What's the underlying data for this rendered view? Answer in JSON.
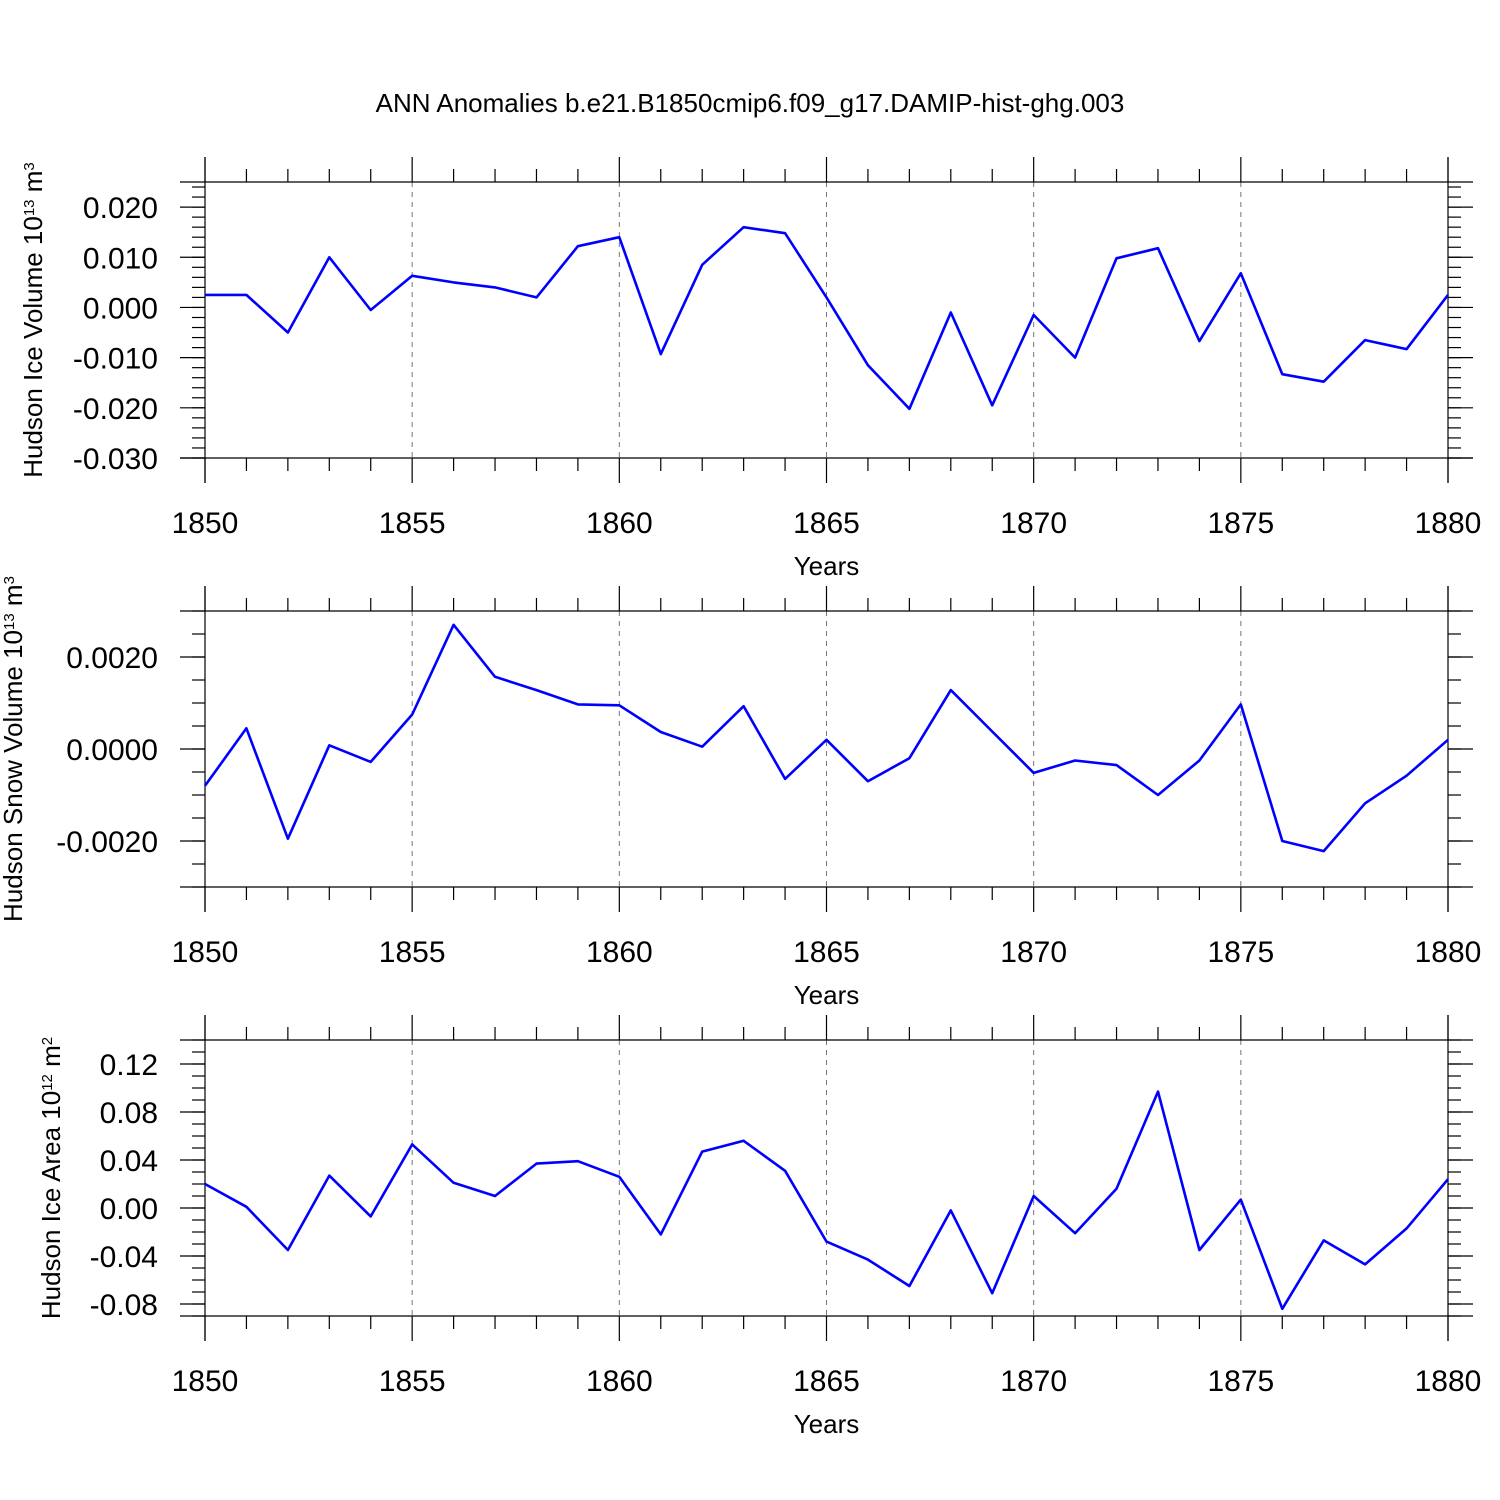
{
  "title": "ANN Anomalies b.e21.B1850cmip6.f09_g17.DAMIP-hist-ghg.003",
  "chart_data": [
    {
      "type": "line",
      "xlabel": "Years",
      "ylabel": "Hudson Ice Volume 10",
      "ylabel_exp": "13",
      "ylabel_unit": "m",
      "ylabel_unit_exp": "3",
      "xlim": [
        1850,
        1880
      ],
      "ylim": [
        -0.03,
        0.025
      ],
      "x_ticks": [
        1850,
        1855,
        1860,
        1865,
        1870,
        1875,
        1880
      ],
      "y_ticks": [
        -0.03,
        -0.02,
        -0.01,
        0.0,
        0.01,
        0.02
      ],
      "y_tick_labels": [
        "-0.030",
        "-0.020",
        "-0.010",
        "0.000",
        "0.010",
        "0.020"
      ],
      "y_minor_step": 0.002,
      "grid": "dashed vertical lines at major x ticks",
      "line_color": "#0000ff",
      "x": [
        1850,
        1851,
        1852,
        1853,
        1854,
        1855,
        1856,
        1857,
        1858,
        1859,
        1860,
        1861,
        1862,
        1863,
        1864,
        1865,
        1866,
        1867,
        1868,
        1869,
        1870,
        1871,
        1872,
        1873,
        1874,
        1875,
        1876,
        1877,
        1878,
        1879,
        1880
      ],
      "values": [
        0.0025,
        0.0025,
        -0.005,
        0.01,
        -0.0005,
        0.0063,
        0.005,
        0.004,
        0.002,
        0.0122,
        0.014,
        -0.0093,
        0.0085,
        0.016,
        0.0148,
        0.002,
        -0.0115,
        -0.0202,
        -0.001,
        -0.0195,
        -0.0015,
        -0.01,
        0.0098,
        0.0118,
        -0.0067,
        0.0068,
        -0.0133,
        -0.0148,
        -0.0065,
        -0.0083,
        0.0025
      ]
    },
    {
      "type": "line",
      "xlabel": "Years",
      "ylabel": "Hudson Snow Volume 10",
      "ylabel_exp": "13",
      "ylabel_unit": "m",
      "ylabel_unit_exp": "3",
      "xlim": [
        1850,
        1880
      ],
      "ylim": [
        -0.003,
        0.003
      ],
      "x_ticks": [
        1850,
        1855,
        1860,
        1865,
        1870,
        1875,
        1880
      ],
      "y_ticks": [
        -0.002,
        0.0,
        0.002
      ],
      "y_tick_labels": [
        "-0.0020",
        "0.0000",
        "0.0020"
      ],
      "y_minor_step": 0.0005,
      "grid": "dashed vertical lines at major x ticks",
      "line_color": "#0000ff",
      "x": [
        1850,
        1851,
        1852,
        1853,
        1854,
        1855,
        1856,
        1857,
        1858,
        1859,
        1860,
        1861,
        1862,
        1863,
        1864,
        1865,
        1866,
        1867,
        1868,
        1869,
        1870,
        1871,
        1872,
        1873,
        1874,
        1875,
        1876,
        1877,
        1878,
        1879,
        1880
      ],
      "values": [
        -0.0008,
        0.00045,
        -0.00195,
        8e-05,
        -0.00028,
        0.00075,
        0.0027,
        0.00157,
        0.00128,
        0.00097,
        0.00095,
        0.00037,
        5e-05,
        0.00093,
        -0.00065,
        0.0002,
        -0.0007,
        -0.0002,
        0.00128,
        0.00038,
        -0.00052,
        -0.00025,
        -0.00035,
        -0.001,
        -0.00025,
        0.00097,
        -0.002,
        -0.00222,
        -0.00118,
        -0.00058,
        0.0002
      ]
    },
    {
      "type": "line",
      "xlabel": "Years",
      "ylabel": "Hudson Ice Area 10",
      "ylabel_exp": "12",
      "ylabel_unit": "m",
      "ylabel_unit_exp": "2",
      "xlim": [
        1850,
        1880
      ],
      "ylim": [
        -0.09,
        0.14
      ],
      "x_ticks": [
        1850,
        1855,
        1860,
        1865,
        1870,
        1875,
        1880
      ],
      "y_ticks": [
        -0.08,
        -0.04,
        0.0,
        0.04,
        0.08,
        0.12
      ],
      "y_tick_labels": [
        "-0.08",
        "-0.04",
        "0.00",
        "0.04",
        "0.08",
        "0.12"
      ],
      "y_minor_step": 0.01,
      "grid": "dashed vertical lines at major x ticks",
      "line_color": "#0000ff",
      "x": [
        1850,
        1851,
        1852,
        1853,
        1854,
        1855,
        1856,
        1857,
        1858,
        1859,
        1860,
        1861,
        1862,
        1863,
        1864,
        1865,
        1866,
        1867,
        1868,
        1869,
        1870,
        1871,
        1872,
        1873,
        1874,
        1875,
        1876,
        1877,
        1878,
        1879,
        1880
      ],
      "values": [
        0.02,
        0.001,
        -0.035,
        0.027,
        -0.007,
        0.053,
        0.021,
        0.01,
        0.037,
        0.039,
        0.026,
        -0.022,
        0.047,
        0.056,
        0.031,
        -0.028,
        -0.043,
        -0.065,
        -0.002,
        -0.071,
        0.01,
        -0.021,
        0.016,
        0.097,
        -0.035,
        0.007,
        -0.084,
        -0.027,
        -0.047,
        -0.017,
        0.024
      ]
    }
  ]
}
